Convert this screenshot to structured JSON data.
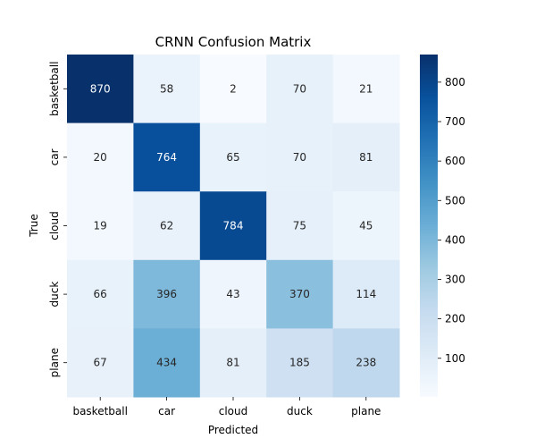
{
  "chart_data": {
    "type": "heatmap",
    "title": "CRNN Confusion Matrix",
    "xlabel": "Predicted",
    "ylabel": "True",
    "x_categories": [
      "basketball",
      "car",
      "cloud",
      "duck",
      "plane"
    ],
    "y_categories": [
      "basketball",
      "car",
      "cloud",
      "duck",
      "plane"
    ],
    "values": [
      [
        870,
        58,
        2,
        70,
        21
      ],
      [
        20,
        764,
        65,
        70,
        81
      ],
      [
        19,
        62,
        784,
        75,
        45
      ],
      [
        66,
        396,
        43,
        370,
        114
      ],
      [
        67,
        434,
        81,
        185,
        238
      ]
    ],
    "colormap": "Blues",
    "color_low": "#f7fbff",
    "color_high": "#08306b",
    "vmin": 2,
    "vmax": 870,
    "colorbar_ticks": [
      100,
      200,
      300,
      400,
      500,
      600,
      700,
      800
    ],
    "annotate_cells": true,
    "legend_position": "right"
  }
}
